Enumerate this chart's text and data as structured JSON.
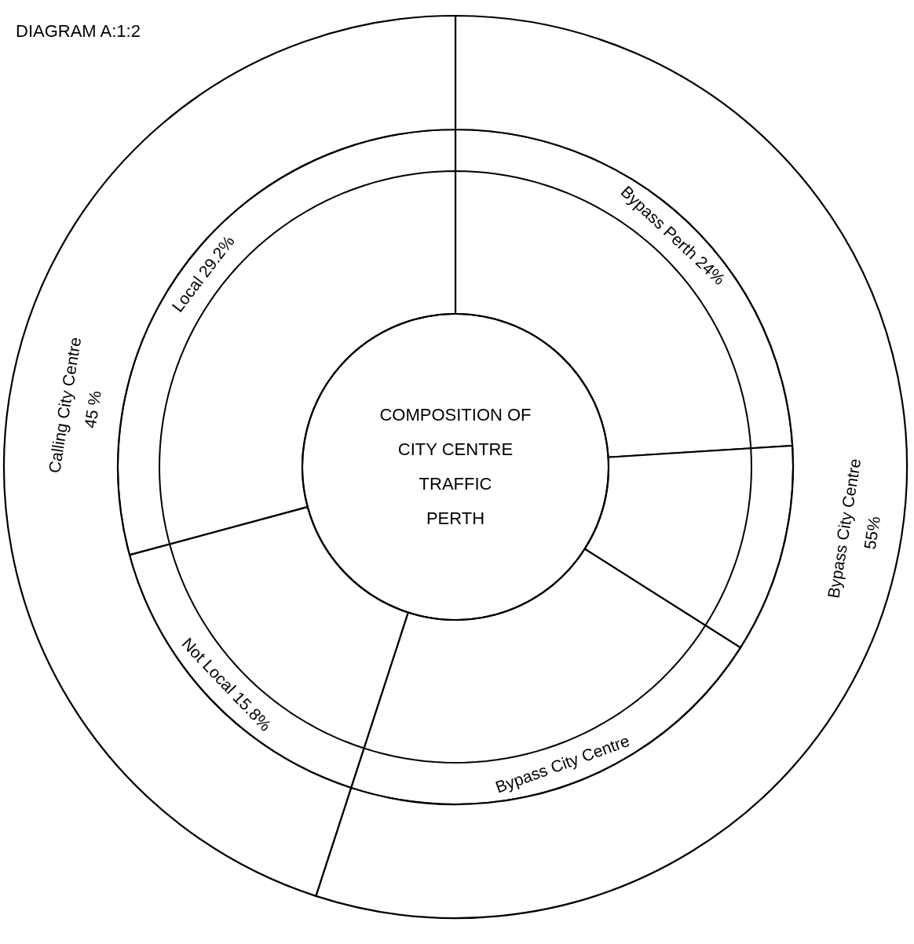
{
  "chart_data": {
    "type": "donut",
    "title": "DIAGRAM A:1:2",
    "annotations": [
      "COMPOSITION OF",
      "CITY CENTRE",
      "TRAFFIC",
      "PERTH"
    ],
    "series": [
      {
        "values": [
          24,
          10,
          21,
          15.8,
          29.2
        ],
        "value_labels": [
          "Bypass Perth 24%",
          null,
          "Bypass City Centre",
          "Not Local 15.8%",
          "Local 29.2%"
        ],
        "colors": [
          "#ffffff",
          "#ffffff",
          "#ffffff",
          "#ffffff",
          "#ffffff"
        ]
      },
      {
        "values": [
          55,
          45
        ],
        "value_labels": [
          "Bypass City Centre\n55%",
          "Calling City Centre\n45 %"
        ],
        "colors": [
          "#ffffff",
          "#ffffff"
        ]
      }
    ]
  }
}
